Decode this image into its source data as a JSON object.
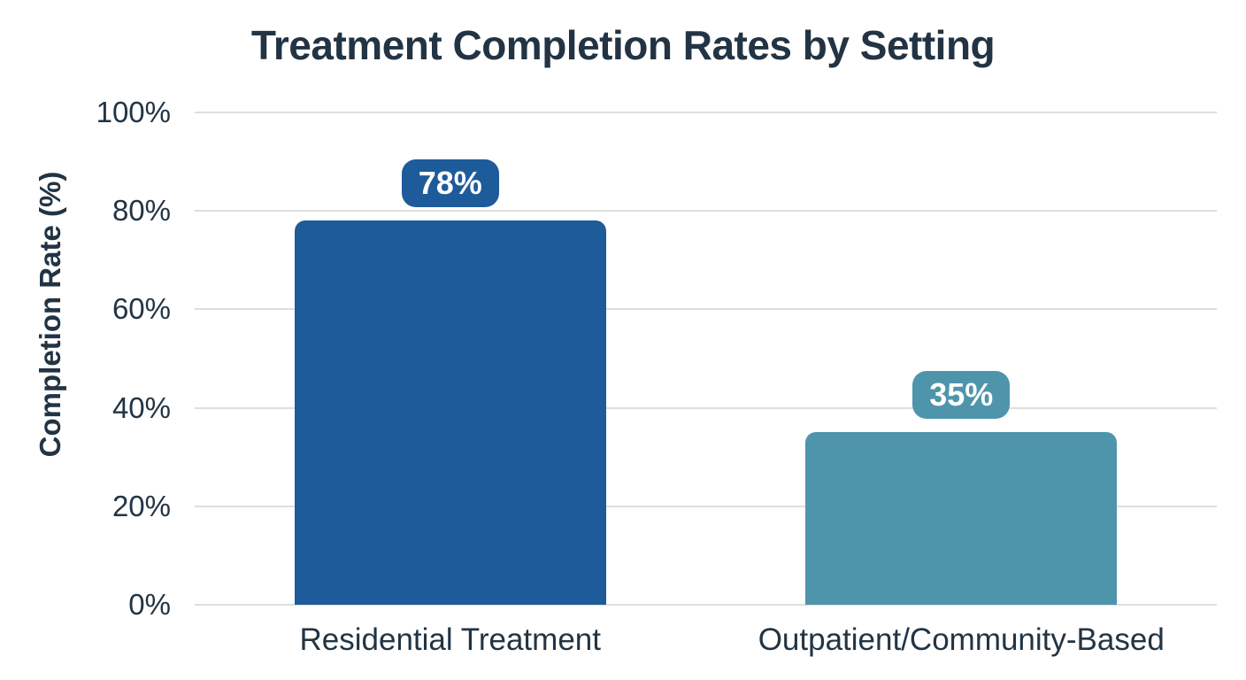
{
  "chart_data": {
    "type": "bar",
    "title": "Treatment Completion Rates by Setting",
    "ylabel": "Completion Rate (%)",
    "xlabel": "",
    "categories": [
      "Residential Treatment",
      "Outpatient/Community-Based"
    ],
    "values": [
      78,
      35
    ],
    "value_labels": [
      "78%",
      "35%"
    ],
    "bar_colors": [
      "#1d5b9b",
      "#4e95ab"
    ],
    "ylim": [
      0,
      100
    ],
    "yticks": [
      0,
      20,
      40,
      60,
      80,
      100
    ],
    "ytick_labels": [
      "0%",
      "20%",
      "40%",
      "60%",
      "80%",
      "100%"
    ],
    "grid": true,
    "legend_position": "none",
    "colors": {
      "background": "#ffffff",
      "title_text": "#223444",
      "axis_text": "#223444",
      "gridline": "#dedede",
      "badge_text": "#ffffff"
    }
  }
}
